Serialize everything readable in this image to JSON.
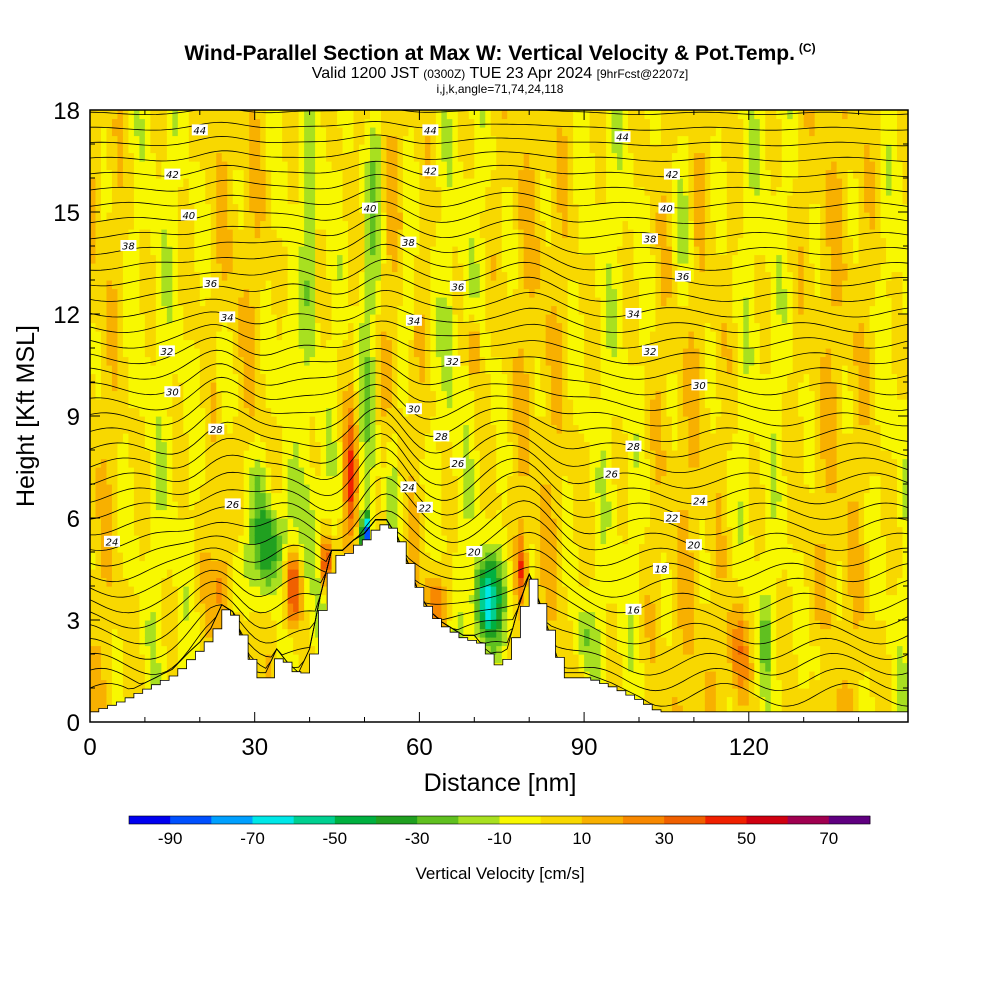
{
  "title": {
    "line1": "Wind-Parallel Section at Max W: Vertical Velocity & Pot.Temp.",
    "line1_units": "(C)",
    "line2_a": "Valid 1200 JST",
    "line2_b": "(0300Z)",
    "line2_c": "TUE 23 Apr 2024",
    "line2_d": "[9hrFcst@2207z]",
    "line3": "i,j,k,angle=71,74,24,118"
  },
  "chart_data": {
    "type": "heatmap",
    "xlabel": "Distance [nm]",
    "ylabel": "Height [Kft MSL]",
    "xlim": [
      0,
      149
    ],
    "ylim": [
      0,
      18
    ],
    "x_ticks": [
      0,
      30,
      60,
      90,
      120
    ],
    "y_ticks": [
      0,
      3,
      6,
      9,
      12,
      15,
      18
    ],
    "grid": false,
    "field": "Vertical Velocity",
    "colorbar": {
      "label": "Vertical Velocity [cm/s]",
      "tick_labels": [
        "-90",
        "-70",
        "-50",
        "-30",
        "-10",
        "10",
        "30",
        "50",
        "70"
      ],
      "bounds": [
        -100,
        80
      ],
      "step": 10,
      "colors": [
        "#0000f0",
        "#0050ff",
        "#00a0ff",
        "#00e8e8",
        "#00d090",
        "#00b040",
        "#20a020",
        "#60c020",
        "#a8e020",
        "#f8f800",
        "#f8d800",
        "#f8b000",
        "#f88800",
        "#f06000",
        "#f02000",
        "#d00010",
        "#a00050",
        "#600080"
      ]
    },
    "terrain_profile": {
      "x": [
        0,
        5,
        10,
        15,
        18,
        20,
        22,
        24,
        26,
        28,
        30,
        32,
        34,
        36,
        38,
        40,
        42,
        44,
        46,
        48,
        50,
        52,
        54,
        56,
        58,
        60,
        62,
        64,
        66,
        68,
        70,
        72,
        74,
        76,
        78,
        80,
        82,
        84,
        86,
        90,
        95,
        100,
        103,
        110,
        149
      ],
      "y": [
        0.3,
        0.6,
        1.0,
        1.4,
        1.9,
        2.2,
        2.6,
        3.3,
        3.1,
        2.2,
        1.3,
        1.3,
        2.0,
        1.6,
        1.3,
        2.0,
        3.6,
        4.9,
        4.9,
        5.2,
        5.4,
        5.8,
        5.8,
        5.3,
        4.5,
        3.6,
        3.1,
        2.8,
        2.6,
        2.4,
        2.4,
        2.0,
        1.6,
        2.0,
        3.2,
        4.2,
        3.3,
        2.3,
        1.3,
        1.3,
        1.0,
        0.6,
        0.3,
        0.3,
        0.3
      ]
    },
    "isentrope_labels": [
      {
        "text": "44",
        "x": 20,
        "y": 17.4
      },
      {
        "text": "44",
        "x": 62,
        "y": 17.4
      },
      {
        "text": "44",
        "x": 97,
        "y": 17.2
      },
      {
        "text": "42",
        "x": 15,
        "y": 16.1
      },
      {
        "text": "42",
        "x": 62,
        "y": 16.2
      },
      {
        "text": "42",
        "x": 106,
        "y": 16.1
      },
      {
        "text": "40",
        "x": 18,
        "y": 14.9
      },
      {
        "text": "40",
        "x": 51,
        "y": 15.1
      },
      {
        "text": "40",
        "x": 105,
        "y": 15.1
      },
      {
        "text": "38",
        "x": 7,
        "y": 14.0
      },
      {
        "text": "38",
        "x": 58,
        "y": 14.1
      },
      {
        "text": "38",
        "x": 102,
        "y": 14.2
      },
      {
        "text": "36",
        "x": 22,
        "y": 12.9
      },
      {
        "text": "36",
        "x": 67,
        "y": 12.8
      },
      {
        "text": "36",
        "x": 108,
        "y": 13.1
      },
      {
        "text": "34",
        "x": 25,
        "y": 11.9
      },
      {
        "text": "34",
        "x": 59,
        "y": 11.8
      },
      {
        "text": "34",
        "x": 99,
        "y": 12.0
      },
      {
        "text": "32",
        "x": 14,
        "y": 10.9
      },
      {
        "text": "32",
        "x": 66,
        "y": 10.6
      },
      {
        "text": "32",
        "x": 102,
        "y": 10.9
      },
      {
        "text": "30",
        "x": 15,
        "y": 9.7
      },
      {
        "text": "30",
        "x": 59,
        "y": 9.2
      },
      {
        "text": "30",
        "x": 111,
        "y": 9.9
      },
      {
        "text": "28",
        "x": 23,
        "y": 8.6
      },
      {
        "text": "28",
        "x": 64,
        "y": 8.4
      },
      {
        "text": "28",
        "x": 99,
        "y": 8.1
      },
      {
        "text": "26",
        "x": 26,
        "y": 6.4
      },
      {
        "text": "26",
        "x": 67,
        "y": 7.6
      },
      {
        "text": "26",
        "x": 95,
        "y": 7.3
      },
      {
        "text": "24",
        "x": 4,
        "y": 5.3
      },
      {
        "text": "24",
        "x": 58,
        "y": 6.9
      },
      {
        "text": "24",
        "x": 111,
        "y": 6.5
      },
      {
        "text": "22",
        "x": 61,
        "y": 6.3
      },
      {
        "text": "22",
        "x": 106,
        "y": 6.0
      },
      {
        "text": "20",
        "x": 70,
        "y": 5.0
      },
      {
        "text": "20",
        "x": 110,
        "y": 5.2
      },
      {
        "text": "18",
        "x": 104,
        "y": 4.5
      },
      {
        "text": "16",
        "x": 99,
        "y": 3.3
      }
    ]
  }
}
